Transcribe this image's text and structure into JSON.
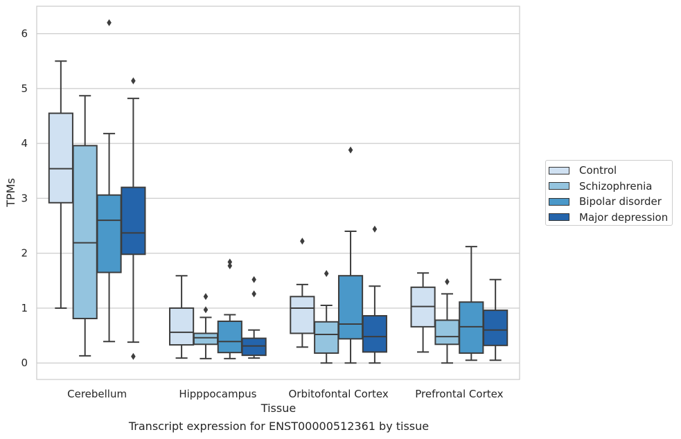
{
  "caption": "Transcript expression for ENST00000512361 by tissue",
  "chart_data": {
    "type": "box",
    "xlabel": "Tissue",
    "ylabel": "TPMs",
    "ylim": [
      -0.3,
      6.5
    ],
    "yticks": [
      0,
      1,
      2,
      3,
      4,
      5,
      6
    ],
    "grid": "horizontal",
    "legend_position": "right",
    "categories": [
      "Cerebellum",
      "Hipppocampus",
      "Orbitofontal Cortex",
      "Prefrontal Cortex"
    ],
    "series": [
      {
        "name": "Control",
        "color": "#d0e1f2",
        "boxes": [
          {
            "whislo": 1.0,
            "q1": 2.92,
            "median": 3.54,
            "q3": 4.55,
            "whishi": 5.5,
            "fliers": []
          },
          {
            "whislo": 0.09,
            "q1": 0.33,
            "median": 0.56,
            "q3": 1.0,
            "whishi": 1.59,
            "fliers": []
          },
          {
            "whislo": 0.29,
            "q1": 0.54,
            "median": 1.0,
            "q3": 1.21,
            "whishi": 1.43,
            "fliers": [
              2.22
            ]
          },
          {
            "whislo": 0.2,
            "q1": 0.66,
            "median": 1.03,
            "q3": 1.38,
            "whishi": 1.64,
            "fliers": []
          }
        ]
      },
      {
        "name": "Schizophrenia",
        "color": "#94c4df",
        "boxes": [
          {
            "whislo": 0.13,
            "q1": 0.81,
            "median": 2.19,
            "q3": 3.96,
            "whishi": 4.87,
            "fliers": []
          },
          {
            "whislo": 0.08,
            "q1": 0.34,
            "median": 0.46,
            "q3": 0.54,
            "whishi": 0.83,
            "fliers": [
              0.97,
              1.21
            ]
          },
          {
            "whislo": 0.0,
            "q1": 0.18,
            "median": 0.52,
            "q3": 0.75,
            "whishi": 1.05,
            "fliers": [
              1.63
            ]
          },
          {
            "whislo": 0.0,
            "q1": 0.34,
            "median": 0.48,
            "q3": 0.78,
            "whishi": 1.26,
            "fliers": [
              1.48
            ]
          }
        ]
      },
      {
        "name": "Bipolar disorder",
        "color": "#4a98c9",
        "boxes": [
          {
            "whislo": 0.39,
            "q1": 1.65,
            "median": 2.6,
            "q3": 3.06,
            "whishi": 4.18,
            "fliers": [
              6.2
            ]
          },
          {
            "whislo": 0.08,
            "q1": 0.19,
            "median": 0.39,
            "q3": 0.76,
            "whishi": 0.88,
            "fliers": [
              1.77,
              1.84
            ]
          },
          {
            "whislo": 0.0,
            "q1": 0.44,
            "median": 0.71,
            "q3": 1.59,
            "whishi": 2.4,
            "fliers": [
              3.88
            ]
          },
          {
            "whislo": 0.05,
            "q1": 0.18,
            "median": 0.66,
            "q3": 1.11,
            "whishi": 2.12,
            "fliers": []
          }
        ]
      },
      {
        "name": "Major depression",
        "color": "#2464ab",
        "boxes": [
          {
            "whislo": 0.38,
            "q1": 1.98,
            "median": 2.37,
            "q3": 3.2,
            "whishi": 4.82,
            "fliers": [
              0.12,
              5.14
            ]
          },
          {
            "whislo": 0.09,
            "q1": 0.14,
            "median": 0.31,
            "q3": 0.45,
            "whishi": 0.6,
            "fliers": [
              1.26,
              1.52
            ]
          },
          {
            "whislo": 0.0,
            "q1": 0.2,
            "median": 0.48,
            "q3": 0.86,
            "whishi": 1.4,
            "fliers": [
              2.44
            ]
          },
          {
            "whislo": 0.05,
            "q1": 0.32,
            "median": 0.6,
            "q3": 0.96,
            "whishi": 1.52,
            "fliers": []
          }
        ]
      }
    ]
  }
}
